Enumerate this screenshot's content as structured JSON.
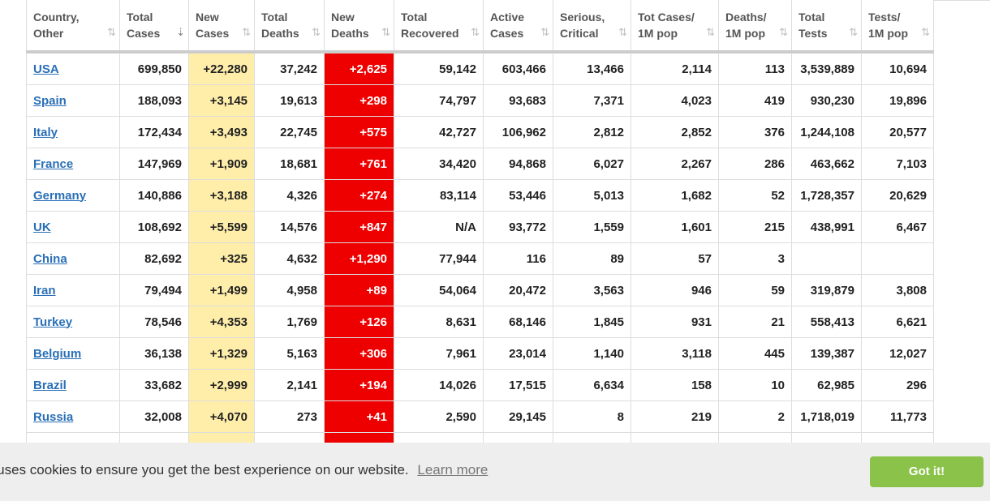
{
  "table": {
    "columns": [
      {
        "l1": "Country,",
        "l2": "Other",
        "sort": "⇅"
      },
      {
        "l1": "Total",
        "l2": "Cases",
        "sort": "⇣"
      },
      {
        "l1": "New",
        "l2": "Cases",
        "sort": "⇅"
      },
      {
        "l1": "Total",
        "l2": "Deaths",
        "sort": "⇅"
      },
      {
        "l1": "New",
        "l2": "Deaths",
        "sort": "⇅"
      },
      {
        "l1": "Total",
        "l2": "Recovered",
        "sort": "⇅"
      },
      {
        "l1": "Active",
        "l2": "Cases",
        "sort": "⇅"
      },
      {
        "l1": "Serious,",
        "l2": "Critical",
        "sort": "⇅"
      },
      {
        "l1": "Tot Cases/",
        "l2": "1M pop",
        "sort": "⇅"
      },
      {
        "l1": "Deaths/",
        "l2": "1M pop",
        "sort": "⇅"
      },
      {
        "l1": "Total",
        "l2": "Tests",
        "sort": "⇅"
      },
      {
        "l1": "Tests/",
        "l2": "1M pop",
        "sort": "⇅"
      }
    ],
    "rows": [
      [
        "USA",
        "699,850",
        "+22,280",
        "37,242",
        "+2,625",
        "59,142",
        "603,466",
        "13,466",
        "2,114",
        "113",
        "3,539,889",
        "10,694"
      ],
      [
        "Spain",
        "188,093",
        "+3,145",
        "19,613",
        "+298",
        "74,797",
        "93,683",
        "7,371",
        "4,023",
        "419",
        "930,230",
        "19,896"
      ],
      [
        "Italy",
        "172,434",
        "+3,493",
        "22,745",
        "+575",
        "42,727",
        "106,962",
        "2,812",
        "2,852",
        "376",
        "1,244,108",
        "20,577"
      ],
      [
        "France",
        "147,969",
        "+1,909",
        "18,681",
        "+761",
        "34,420",
        "94,868",
        "6,027",
        "2,267",
        "286",
        "463,662",
        "7,103"
      ],
      [
        "Germany",
        "140,886",
        "+3,188",
        "4,326",
        "+274",
        "83,114",
        "53,446",
        "5,013",
        "1,682",
        "52",
        "1,728,357",
        "20,629"
      ],
      [
        "UK",
        "108,692",
        "+5,599",
        "14,576",
        "+847",
        "N/A",
        "93,772",
        "1,559",
        "1,601",
        "215",
        "438,991",
        "6,467"
      ],
      [
        "China",
        "82,692",
        "+325",
        "4,632",
        "+1,290",
        "77,944",
        "116",
        "89",
        "57",
        "3",
        "",
        ""
      ],
      [
        "Iran",
        "79,494",
        "+1,499",
        "4,958",
        "+89",
        "54,064",
        "20,472",
        "3,563",
        "946",
        "59",
        "319,879",
        "3,808"
      ],
      [
        "Turkey",
        "78,546",
        "+4,353",
        "1,769",
        "+126",
        "8,631",
        "68,146",
        "1,845",
        "931",
        "21",
        "558,413",
        "6,621"
      ],
      [
        "Belgium",
        "36,138",
        "+1,329",
        "5,163",
        "+306",
        "7,961",
        "23,014",
        "1,140",
        "3,118",
        "445",
        "139,387",
        "12,027"
      ],
      [
        "Brazil",
        "33,682",
        "+2,999",
        "2,141",
        "+194",
        "14,026",
        "17,515",
        "6,634",
        "158",
        "10",
        "62,985",
        "296"
      ],
      [
        "Russia",
        "32,008",
        "+4,070",
        "273",
        "+41",
        "2,590",
        "29,145",
        "8",
        "219",
        "2",
        "1,718,019",
        "11,773"
      ]
    ]
  },
  "cookie": {
    "text": "e uses cookies to ensure you get the best experience on our website.",
    "link": "Learn more",
    "button": "Got it!"
  },
  "colors": {
    "new_cases_bg": "#ffeeaa",
    "new_deaths_bg": "#ee0000",
    "link": "#2a6fb6",
    "accept_button": "#8bc34a"
  }
}
